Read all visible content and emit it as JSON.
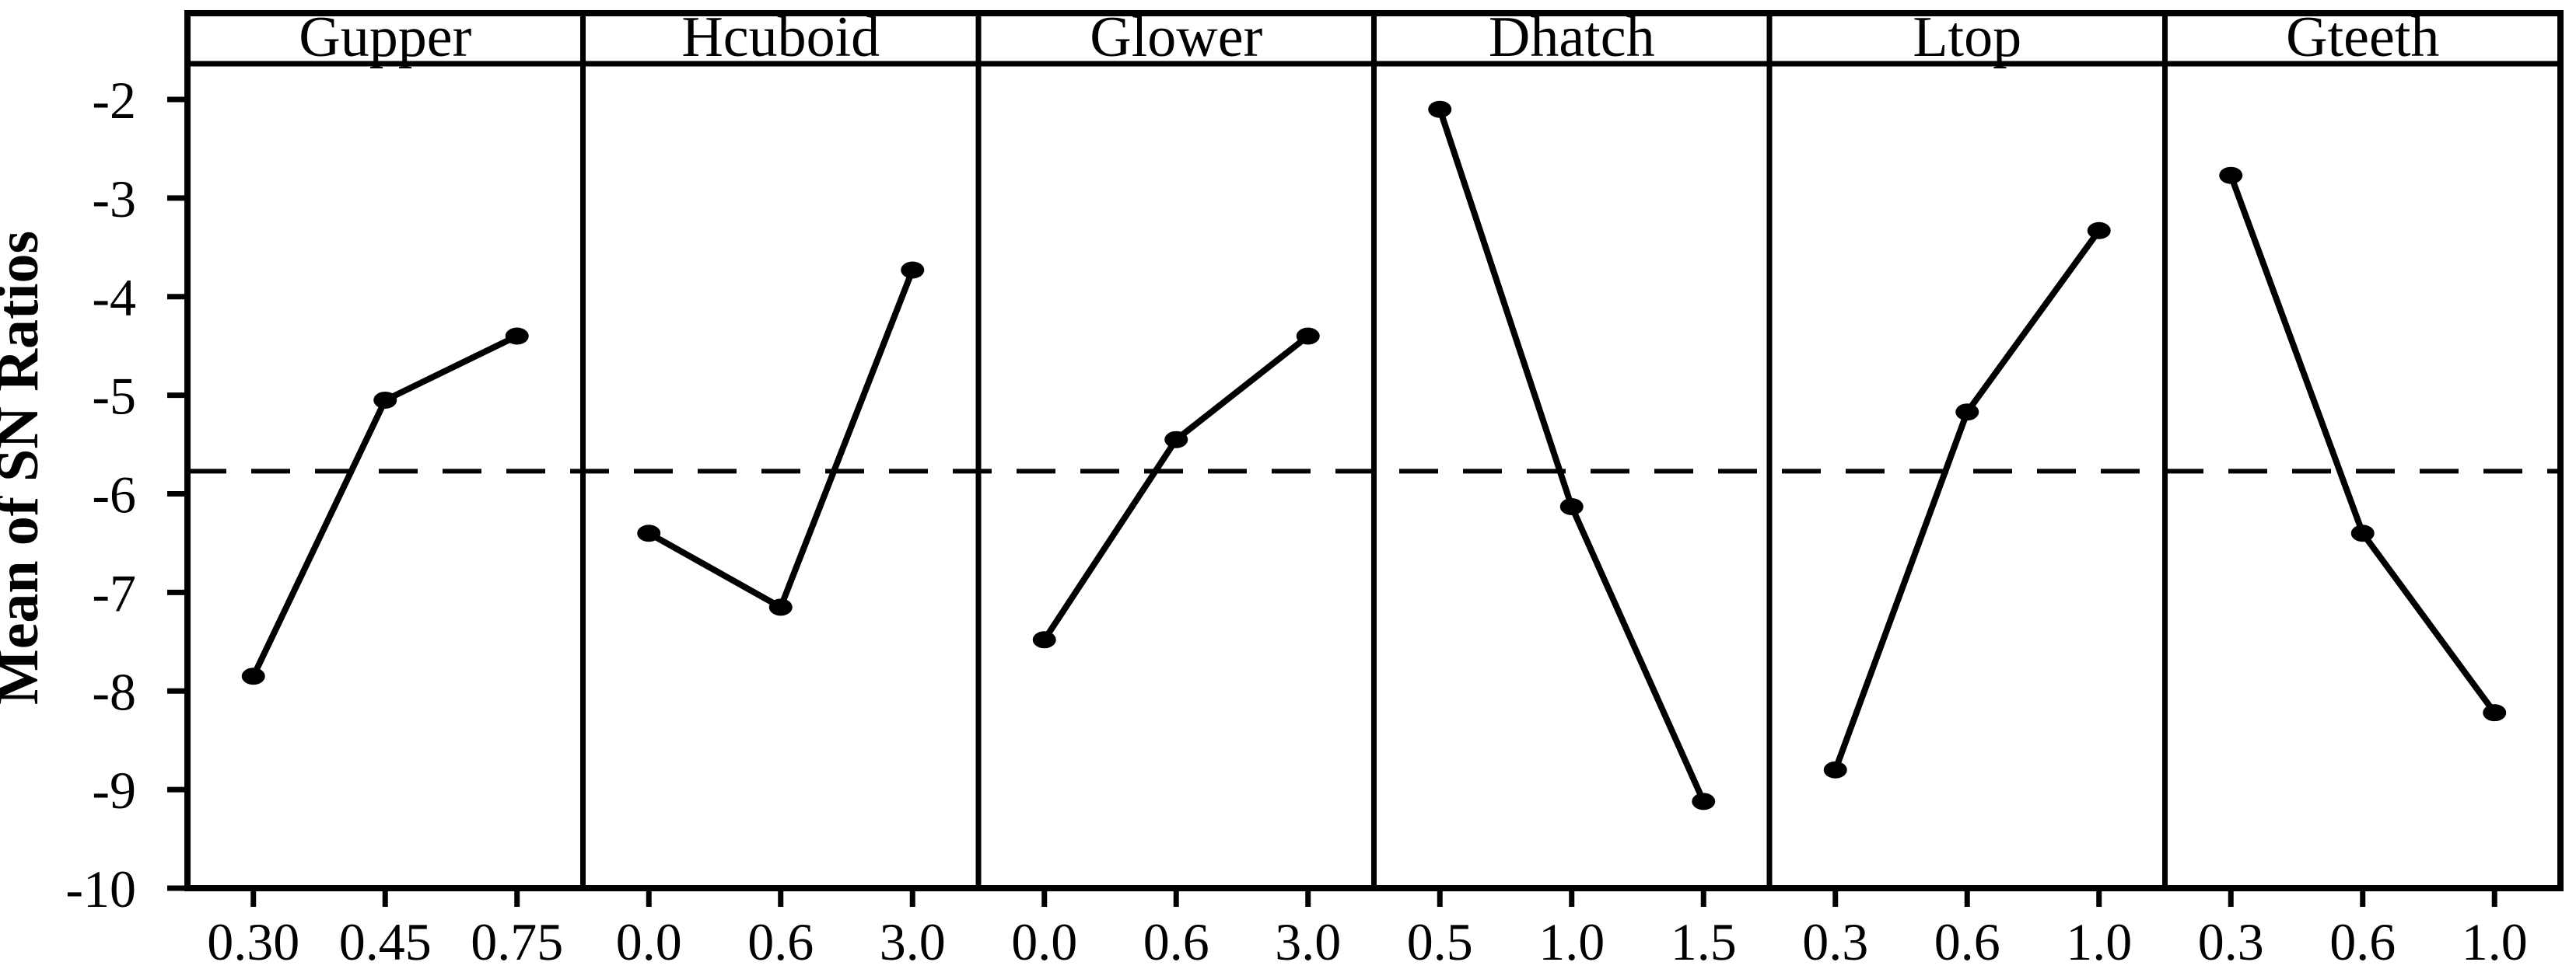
{
  "figure": {
    "background": "#ffffff",
    "ink": "#000000"
  },
  "chart_data": {
    "type": "line",
    "title": "",
    "xlabel": "",
    "ylabel": "Mean of SN Ratios",
    "ylim": [
      -10,
      -2
    ],
    "yticks": [
      -2,
      -3,
      -4,
      -5,
      -6,
      -7,
      -8,
      -9,
      -10
    ],
    "grid": false,
    "legend": false,
    "reference_line": -5.77,
    "reference_line_style": "dashed",
    "marker": "filled-circle",
    "series_color": "#000000",
    "panels": [
      {
        "title": "Gupper",
        "x_labels": [
          "0.30",
          "0.45",
          "0.75"
        ],
        "values": [
          -7.85,
          -5.05,
          -4.4
        ]
      },
      {
        "title": "Hcuboid",
        "x_labels": [
          "0.0",
          "0.6",
          "3.0"
        ],
        "values": [
          -6.4,
          -7.15,
          -3.73
        ]
      },
      {
        "title": "Glower",
        "x_labels": [
          "0.0",
          "0.6",
          "3.0"
        ],
        "values": [
          -7.48,
          -5.45,
          -4.4
        ]
      },
      {
        "title": "Dhatch",
        "x_labels": [
          "0.5",
          "1.0",
          "1.5"
        ],
        "values": [
          -2.1,
          -6.13,
          -9.12
        ]
      },
      {
        "title": "Ltop",
        "x_labels": [
          "0.3",
          "0.6",
          "1.0"
        ],
        "values": [
          -8.8,
          -5.17,
          -3.33
        ]
      },
      {
        "title": "Gteeth",
        "x_labels": [
          "0.3",
          "0.6",
          "1.0"
        ],
        "values": [
          -2.77,
          -6.4,
          -8.22
        ]
      }
    ]
  }
}
